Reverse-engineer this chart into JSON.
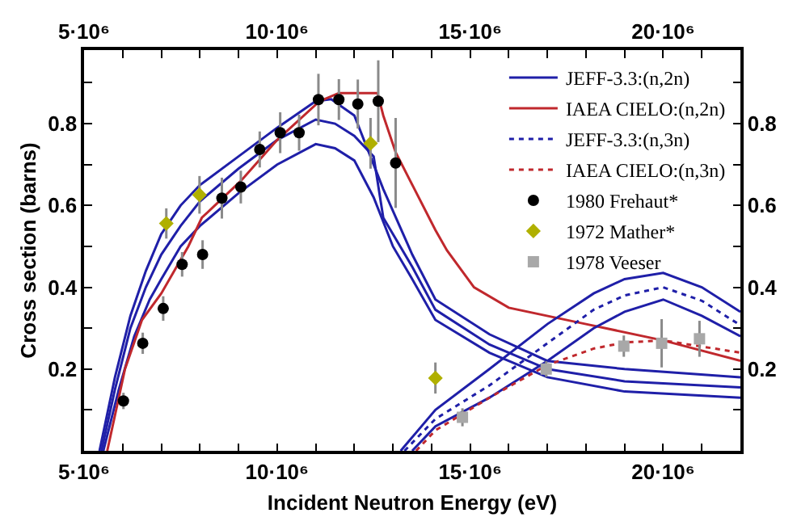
{
  "chart_data": {
    "type": "line",
    "xlabel": "Incident Neutron Energy (eV)",
    "ylabel": "Cross section (barns)",
    "xlim": [
      5000000,
      22000000
    ],
    "ylim": [
      0,
      0.98
    ],
    "x2lim": [
      5000000,
      22000000
    ],
    "y2lim": [
      0,
      0.98
    ],
    "xticks": [
      {
        "value": 5000000,
        "label": "5·10⁶"
      },
      {
        "value": 6000000,
        "label": null
      },
      {
        "value": 7000000,
        "label": null
      },
      {
        "value": 8000000,
        "label": null
      },
      {
        "value": 9000000,
        "label": null
      },
      {
        "value": 10000000,
        "label": "10·10⁶"
      },
      {
        "value": 11000000,
        "label": null
      },
      {
        "value": 12000000,
        "label": null
      },
      {
        "value": 13000000,
        "label": null
      },
      {
        "value": 14000000,
        "label": null
      },
      {
        "value": 15000000,
        "label": "15·10⁶"
      },
      {
        "value": 16000000,
        "label": null
      },
      {
        "value": 17000000,
        "label": null
      },
      {
        "value": 18000000,
        "label": null
      },
      {
        "value": 19000000,
        "label": null
      },
      {
        "value": 20000000,
        "label": "20·10⁶"
      },
      {
        "value": 21000000,
        "label": null
      }
    ],
    "x2ticks": [
      {
        "value": 5000000,
        "label": "5·10⁶"
      },
      {
        "value": 6000000,
        "label": null
      },
      {
        "value": 7000000,
        "label": null
      },
      {
        "value": 8000000,
        "label": null
      },
      {
        "value": 9000000,
        "label": null
      },
      {
        "value": 10000000,
        "label": "10·10⁶"
      },
      {
        "value": 11000000,
        "label": null
      },
      {
        "value": 12000000,
        "label": null
      },
      {
        "value": 13000000,
        "label": null
      },
      {
        "value": 14000000,
        "label": null
      },
      {
        "value": 15000000,
        "label": "15·10⁶"
      },
      {
        "value": 16000000,
        "label": null
      },
      {
        "value": 17000000,
        "label": null
      },
      {
        "value": 18000000,
        "label": null
      },
      {
        "value": 19000000,
        "label": null
      },
      {
        "value": 20000000,
        "label": "20·10⁶"
      },
      {
        "value": 21000000,
        "label": null
      }
    ],
    "yticks": [
      {
        "value": 0.1,
        "label": null
      },
      0.2,
      {
        "value": 0.3,
        "label": null
      },
      0.4,
      {
        "value": 0.5,
        "label": null
      },
      0.6,
      {
        "value": 0.7,
        "label": null
      },
      0.8,
      {
        "value": 0.9,
        "label": null
      }
    ],
    "y2ticks": [
      {
        "value": 0.1,
        "label": null
      },
      0.2,
      {
        "value": 0.3,
        "label": null
      },
      0.4,
      {
        "value": 0.5,
        "label": null
      },
      0.6,
      {
        "value": 0.7,
        "label": null
      },
      0.8,
      {
        "value": 0.9,
        "label": null
      }
    ],
    "legend": "top right",
    "series": [
      {
        "name": "JEFF-3.3:(n,2n)",
        "color": "#1f1fa8",
        "line_style": "solid",
        "x": [
          5450000,
          5800000,
          6200000,
          6600000,
          7000000,
          7500000,
          8000000,
          9000000,
          10000000,
          11000000,
          11500000,
          12000000,
          12500000,
          12750000,
          13500000,
          14100000,
          15500000,
          17000000,
          19000000,
          22000000
        ],
        "values": [
          0,
          0.15,
          0.3,
          0.4,
          0.48,
          0.55,
          0.61,
          0.69,
          0.76,
          0.81,
          0.8,
          0.77,
          0.72,
          0.57,
          0.45,
          0.345,
          0.26,
          0.2,
          0.17,
          0.155
        ]
      },
      {
        "color": "#1f1fa8",
        "line_style": "solid",
        "x": [
          5400000,
          5800000,
          6200000,
          6600000,
          7000000,
          7500000,
          8000000,
          9000000,
          10000000,
          11000000,
          11400000,
          12000000,
          12750000,
          13500000,
          14100000,
          15500000,
          17000000,
          19000000,
          22000000
        ],
        "values": [
          0,
          0.18,
          0.33,
          0.44,
          0.53,
          0.6,
          0.65,
          0.72,
          0.79,
          0.855,
          0.86,
          0.82,
          0.64,
          0.48,
          0.37,
          0.285,
          0.22,
          0.2,
          0.18
        ]
      },
      {
        "color": "#1f1fa8",
        "line_style": "solid",
        "x": [
          5500000,
          5900000,
          6300000,
          6700000,
          7000000,
          7500000,
          8000000,
          9000000,
          10000000,
          11000000,
          11500000,
          12000000,
          12500000,
          13000000,
          13500000,
          14100000,
          15500000,
          17000000,
          19000000,
          22000000
        ],
        "values": [
          0,
          0.15,
          0.28,
          0.37,
          0.42,
          0.5,
          0.55,
          0.63,
          0.7,
          0.75,
          0.74,
          0.71,
          0.62,
          0.5,
          0.42,
          0.32,
          0.24,
          0.18,
          0.145,
          0.13
        ]
      },
      {
        "name": "IAEA CIELO:(n,2n)",
        "color": "#c0282d",
        "line_style": "solid",
        "x": [
          5600000,
          5900000,
          6060000,
          6500000,
          7000000,
          7700000,
          8050000,
          9060000,
          10000000,
          11100000,
          11600000,
          12600000,
          12750000,
          13070000,
          14100000,
          14400000,
          15100000,
          16000000,
          18000000,
          20000000,
          22000000
        ],
        "values": [
          0,
          0.13,
          0.2,
          0.32,
          0.385,
          0.5,
          0.57,
          0.66,
          0.76,
          0.855,
          0.875,
          0.875,
          0.82,
          0.73,
          0.54,
          0.49,
          0.4,
          0.35,
          0.31,
          0.27,
          0.22
        ]
      },
      {
        "name": "JEFF-3.3:(n,3n)",
        "color": "#1f1fa8",
        "line_style": "dotted",
        "x": [
          13300000,
          14100000,
          15500000,
          17000000,
          18200000,
          19000000,
          20000000,
          21000000,
          22000000
        ],
        "values": [
          0,
          0.078,
          0.16,
          0.263,
          0.345,
          0.38,
          0.4,
          0.367,
          0.307
        ]
      },
      {
        "color": "#1f1fa8",
        "line_style": "solid",
        "x": [
          13200000,
          14100000,
          15500000,
          17000000,
          18200000,
          19000000,
          20000000,
          21000000,
          22000000
        ],
        "values": [
          0,
          0.1,
          0.2,
          0.31,
          0.385,
          0.42,
          0.435,
          0.4,
          0.34
        ]
      },
      {
        "color": "#1f1fa8",
        "line_style": "solid",
        "x": [
          13500000,
          14100000,
          15500000,
          17000000,
          18200000,
          19000000,
          20000000,
          21000000,
          22000000
        ],
        "values": [
          0,
          0.06,
          0.13,
          0.22,
          0.3,
          0.34,
          0.37,
          0.33,
          0.28
        ]
      },
      {
        "name": "IAEA CIELO:(n,3n)",
        "color": "#c0282d",
        "line_style": "dotted",
        "x": [
          13600000,
          14100000,
          15500000,
          17000000,
          18200000,
          19000000,
          20000000,
          21000000,
          22000000
        ],
        "values": [
          0,
          0.05,
          0.13,
          0.21,
          0.25,
          0.265,
          0.27,
          0.255,
          0.24
        ]
      },
      {
        "name": "1980 Frehaut*",
        "type": "scatter",
        "marker": "circle",
        "color": "#000000",
        "x": [
          6020000,
          6520000,
          7050000,
          7540000,
          8070000,
          8570000,
          9060000,
          9550000,
          10080000,
          10570000,
          11070000,
          11600000,
          12090000,
          12620000,
          13070000
        ],
        "values": [
          0.122,
          0.263,
          0.348,
          0.456,
          0.48,
          0.618,
          0.645,
          0.737,
          0.778,
          0.778,
          0.859,
          0.859,
          0.848,
          0.855,
          0.704
        ],
        "errors": [
          0.02,
          0.026,
          0.03,
          0.03,
          0.035,
          0.05,
          0.04,
          0.044,
          0.05,
          0.044,
          0.063,
          0.05,
          0.06,
          0.1,
          0.11
        ]
      },
      {
        "name": "1972 Mather*",
        "type": "scatter",
        "marker": "diamond",
        "color": "#b0b000",
        "x": [
          7130000,
          7990000,
          12420000,
          14100000
        ],
        "values": [
          0.556,
          0.626,
          0.752,
          0.178
        ],
        "errors": [
          0.037,
          0.046,
          0.062,
          0.038
        ]
      },
      {
        "name": "1978 Veeser",
        "type": "scatter",
        "marker": "square",
        "color": "#a8a8a8",
        "x": [
          14800000,
          16970000,
          18980000,
          19960000,
          20940000
        ],
        "values": [
          0.082,
          0.2,
          0.256,
          0.263,
          0.274
        ],
        "errors": [
          0.022,
          0.019,
          0.026,
          0.059,
          0.044
        ]
      }
    ]
  }
}
